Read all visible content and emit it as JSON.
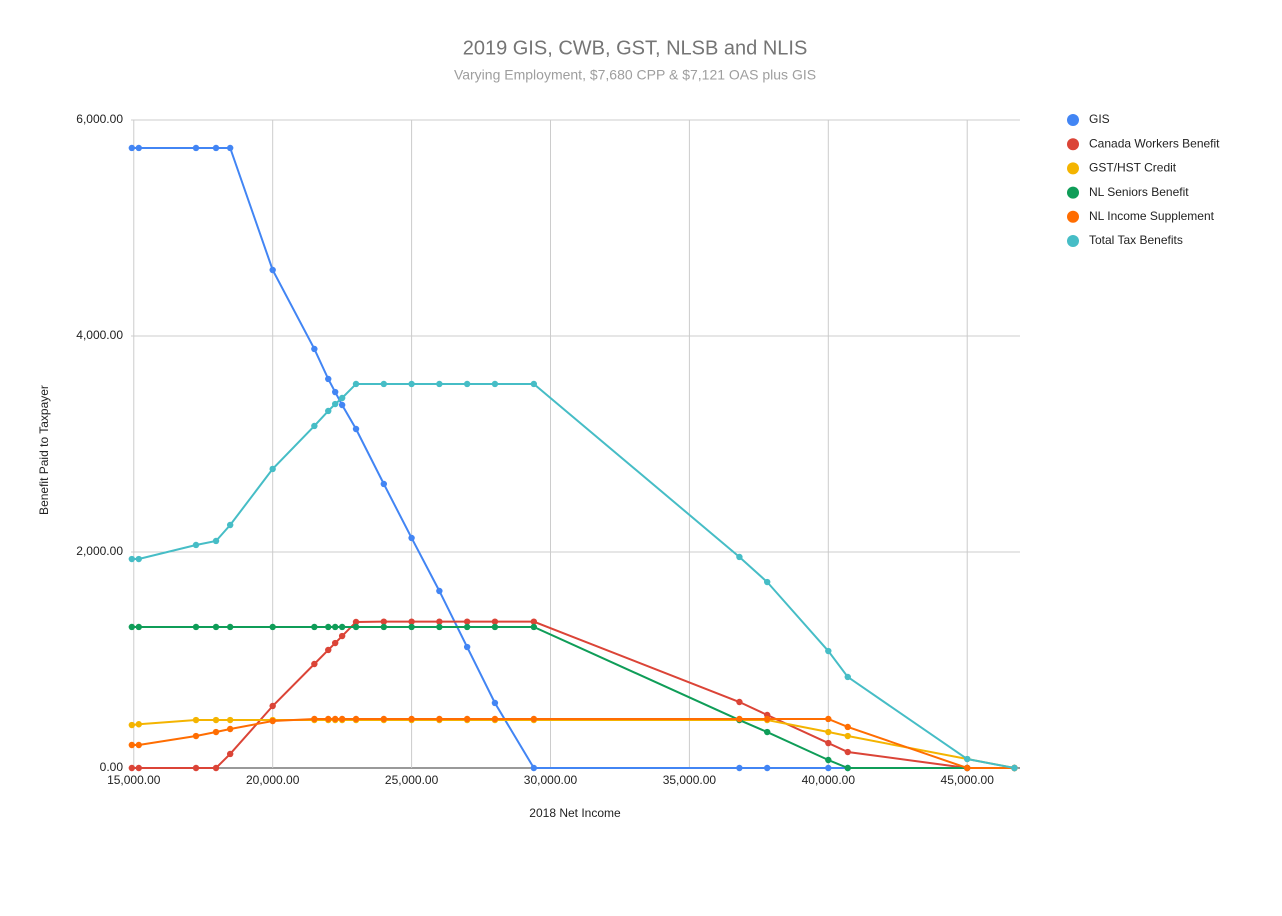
{
  "chart_data": {
    "type": "line",
    "title": "2019 GIS, CWB, GST, NLSB and NLIS",
    "subtitle": "Varying Employment, $7,680 CPP & $7,121 OAS plus GIS",
    "x_label": "2018 Net Income",
    "y_label": "Benefit Paid to Taxpayer",
    "x": [
      14930,
      15180,
      17240,
      17960,
      18470,
      20000,
      21500,
      22000,
      22250,
      22500,
      23000,
      24000,
      25000,
      26000,
      27000,
      28000,
      29400,
      36800,
      37800,
      40000,
      40700,
      45000,
      46700
    ],
    "series": [
      {
        "name": "GIS",
        "color": "#4285f4",
        "values": [
          5741,
          5741,
          5741,
          5741,
          5741,
          4611,
          3880,
          3602,
          3481,
          3361,
          3139,
          2630,
          2130,
          1639,
          1120,
          602,
          0,
          0,
          0,
          0,
          0,
          0,
          0
        ]
      },
      {
        "name": "Canada Workers Benefit",
        "color": "#db4437",
        "values": [
          0,
          0,
          0,
          0,
          130,
          574,
          963,
          1093,
          1157,
          1222,
          1352,
          1355,
          1355,
          1355,
          1355,
          1355,
          1355,
          611,
          491,
          231,
          148,
          0,
          0
        ]
      },
      {
        "name": "GST/HST Credit",
        "color": "#f4b400",
        "values": [
          398,
          405,
          444,
          444,
          444,
          444,
          444,
          444,
          444,
          444,
          444,
          444,
          444,
          444,
          444,
          444,
          444,
          444,
          444,
          333,
          296,
          83,
          0
        ]
      },
      {
        "name": "NL Seniors Benefit",
        "color": "#0f9d58",
        "values": [
          1306,
          1306,
          1306,
          1306,
          1306,
          1306,
          1306,
          1306,
          1306,
          1306,
          1306,
          1306,
          1306,
          1306,
          1306,
          1306,
          1306,
          444,
          333,
          74,
          0,
          0,
          0
        ]
      },
      {
        "name": "NL Income Supplement",
        "color": "#ff6d01",
        "values": [
          213,
          213,
          296,
          333,
          361,
          435,
          454,
          454,
          454,
          454,
          454,
          454,
          454,
          454,
          454,
          454,
          454,
          454,
          454,
          454,
          380,
          0,
          0
        ]
      },
      {
        "name": "Total Tax Benefits",
        "color": "#46bdc6",
        "values": [
          1935,
          1935,
          2065,
          2102,
          2250,
          2769,
          3167,
          3306,
          3370,
          3426,
          3556,
          3556,
          3556,
          3556,
          3556,
          3556,
          3556,
          1954,
          1722,
          1083,
          843,
          83,
          0
        ]
      }
    ],
    "xlim": [
      14900,
      46900
    ],
    "xticks": [
      {
        "value": 15000,
        "label": "15,000.00"
      },
      {
        "value": 20000,
        "label": "20,000.00"
      },
      {
        "value": 25000,
        "label": "25,000.00"
      },
      {
        "value": 30000,
        "label": "30,000.00"
      },
      {
        "value": 35000,
        "label": "35,000.00"
      },
      {
        "value": 40000,
        "label": "40,000.00"
      },
      {
        "value": 45000,
        "label": "45,000.00"
      }
    ],
    "ylim": [
      0,
      6000
    ],
    "yticks": [
      {
        "value": 0,
        "label": "0.00"
      },
      {
        "value": 2000,
        "label": "2,000.00"
      },
      {
        "value": 4000,
        "label": "4,000.00"
      },
      {
        "value": 6000,
        "label": "6,000.00"
      }
    ],
    "grid": true,
    "legend": "right"
  }
}
